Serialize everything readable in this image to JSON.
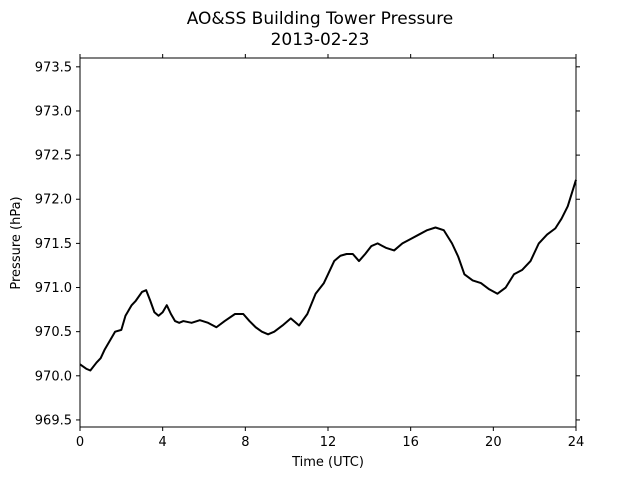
{
  "chart_data": {
    "type": "line",
    "title": "AO&SS Building Tower Pressure",
    "subtitle": "2013-02-23",
    "xlabel": "Time (UTC)",
    "ylabel": "Pressure (hPa)",
    "xlim": [
      0,
      24
    ],
    "ylim": [
      969.42,
      973.6
    ],
    "xticks": [
      "0",
      "4",
      "8",
      "12",
      "16",
      "20",
      "24"
    ],
    "yticks": [
      "969.5",
      "970.0",
      "970.5",
      "971.0",
      "971.5",
      "972.0",
      "972.5",
      "973.0",
      "973.5"
    ],
    "grid": false,
    "series": [
      {
        "color": "#000000",
        "x": [
          0,
          0.3,
          0.5,
          0.8,
          1.0,
          1.2,
          1.5,
          1.7,
          2.0,
          2.2,
          2.5,
          2.7,
          3.0,
          3.2,
          3.4,
          3.6,
          3.8,
          4.0,
          4.2,
          4.4,
          4.6,
          4.8,
          5.0,
          5.4,
          5.8,
          6.2,
          6.6,
          7.0,
          7.5,
          7.9,
          8.2,
          8.5,
          8.8,
          9.1,
          9.4,
          9.8,
          10.2,
          10.6,
          11.0,
          11.4,
          11.8,
          12.0,
          12.3,
          12.6,
          12.9,
          13.2,
          13.5,
          13.8,
          14.1,
          14.4,
          14.8,
          15.2,
          15.6,
          16.0,
          16.4,
          16.8,
          17.2,
          17.6,
          18.0,
          18.3,
          18.6,
          19.0,
          19.4,
          19.8,
          20.2,
          20.6,
          21.0,
          21.4,
          21.8,
          22.2,
          22.6,
          23.0,
          23.3,
          23.6,
          23.8,
          24.0
        ],
        "y": [
          970.13,
          970.08,
          970.06,
          970.15,
          970.2,
          970.3,
          970.42,
          970.5,
          970.52,
          970.68,
          970.8,
          970.85,
          970.95,
          970.97,
          970.85,
          970.72,
          970.68,
          970.72,
          970.8,
          970.7,
          970.62,
          970.6,
          970.62,
          970.6,
          970.63,
          970.6,
          970.55,
          970.62,
          970.7,
          970.7,
          970.62,
          970.55,
          970.5,
          970.47,
          970.5,
          970.57,
          970.65,
          970.57,
          970.7,
          970.93,
          971.05,
          971.15,
          971.3,
          971.36,
          971.38,
          971.38,
          971.3,
          971.38,
          971.47,
          971.5,
          971.45,
          971.42,
          971.5,
          971.55,
          971.6,
          971.65,
          971.68,
          971.65,
          971.5,
          971.35,
          971.15,
          971.08,
          971.05,
          970.98,
          970.93,
          971.0,
          971.15,
          971.2,
          971.3,
          971.5,
          971.6,
          971.67,
          971.78,
          971.92,
          972.07,
          972.22
        ]
      }
    ]
  }
}
